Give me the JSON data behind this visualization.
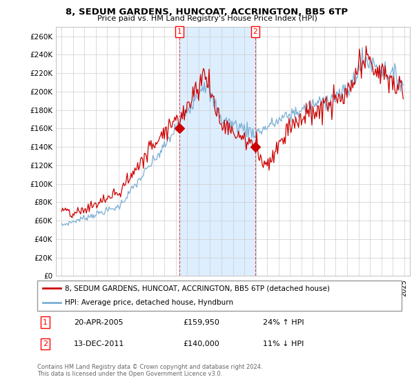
{
  "title": "8, SEDUM GARDENS, HUNCOAT, ACCRINGTON, BB5 6TP",
  "subtitle": "Price paid vs. HM Land Registry's House Price Index (HPI)",
  "legend_line1": "8, SEDUM GARDENS, HUNCOAT, ACCRINGTON, BB5 6TP (detached house)",
  "legend_line2": "HPI: Average price, detached house, Hyndburn",
  "transaction1_date": "20-APR-2005",
  "transaction1_price": "£159,950",
  "transaction1_hpi": "24% ↑ HPI",
  "transaction2_date": "13-DEC-2011",
  "transaction2_price": "£140,000",
  "transaction2_hpi": "11% ↓ HPI",
  "transaction1_x": 2005.3,
  "transaction1_y": 159950,
  "transaction2_x": 2011.95,
  "transaction2_y": 140000,
  "footer": "Contains HM Land Registry data © Crown copyright and database right 2024.\nThis data is licensed under the Open Government Licence v3.0.",
  "hpi_color": "#7bafd4",
  "price_color": "#cc0000",
  "shade_color": "#ddeeff",
  "background_color": "#ffffff",
  "grid_color": "#cccccc",
  "ylim": [
    0,
    270000
  ],
  "yticks": [
    0,
    20000,
    40000,
    60000,
    80000,
    100000,
    120000,
    140000,
    160000,
    180000,
    200000,
    220000,
    240000,
    260000
  ],
  "xlim_start": 1994.5,
  "xlim_end": 2025.5
}
